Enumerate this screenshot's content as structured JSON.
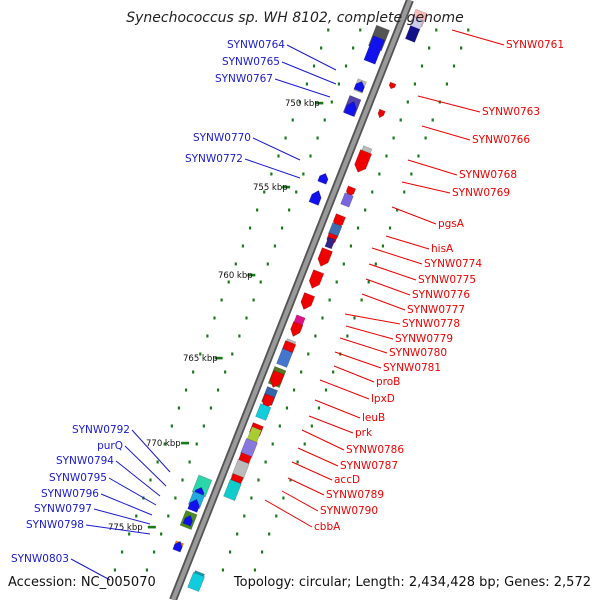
{
  "map": {
    "title": "Synechococcus sp. WH 8102, complete genome",
    "accession": "Accession: NC_005070",
    "summary": "Topology: circular; Length: 2,434,428 bp; Genes: 2,572"
  },
  "colors": {
    "forward_label": "#1a1ad0",
    "reverse_label": "#ee0000",
    "backbone": "#999999",
    "tick": "#1a7a1a"
  },
  "kbp_ticks": [
    "750 kbp",
    "755 kbp",
    "760 kbp",
    "765 kbp",
    "770 kbp",
    "775 kbp"
  ],
  "forward_genes": [
    "SYNW0764",
    "SYNW0765",
    "SYNW0767",
    "SYNW0770",
    "SYNW0772",
    "SYNW0792",
    "purQ",
    "SYNW0794",
    "SYNW0795",
    "SYNW0796",
    "SYNW0797",
    "SYNW0798",
    "SYNW0803"
  ],
  "reverse_genes": [
    "SYNW0761",
    "SYNW0763",
    "SYNW0766",
    "SYNW0768",
    "SYNW0769",
    "pgsA",
    "hisA",
    "SYNW0774",
    "SYNW0775",
    "SYNW0776",
    "SYNW0777",
    "SYNW0778",
    "SYNW0779",
    "SYNW0780",
    "SYNW0781",
    "proB",
    "lpxD",
    "leuB",
    "prk",
    "SYNW0786",
    "SYNW0787",
    "accD",
    "SYNW0789",
    "SYNW0790",
    "cbbA"
  ]
}
